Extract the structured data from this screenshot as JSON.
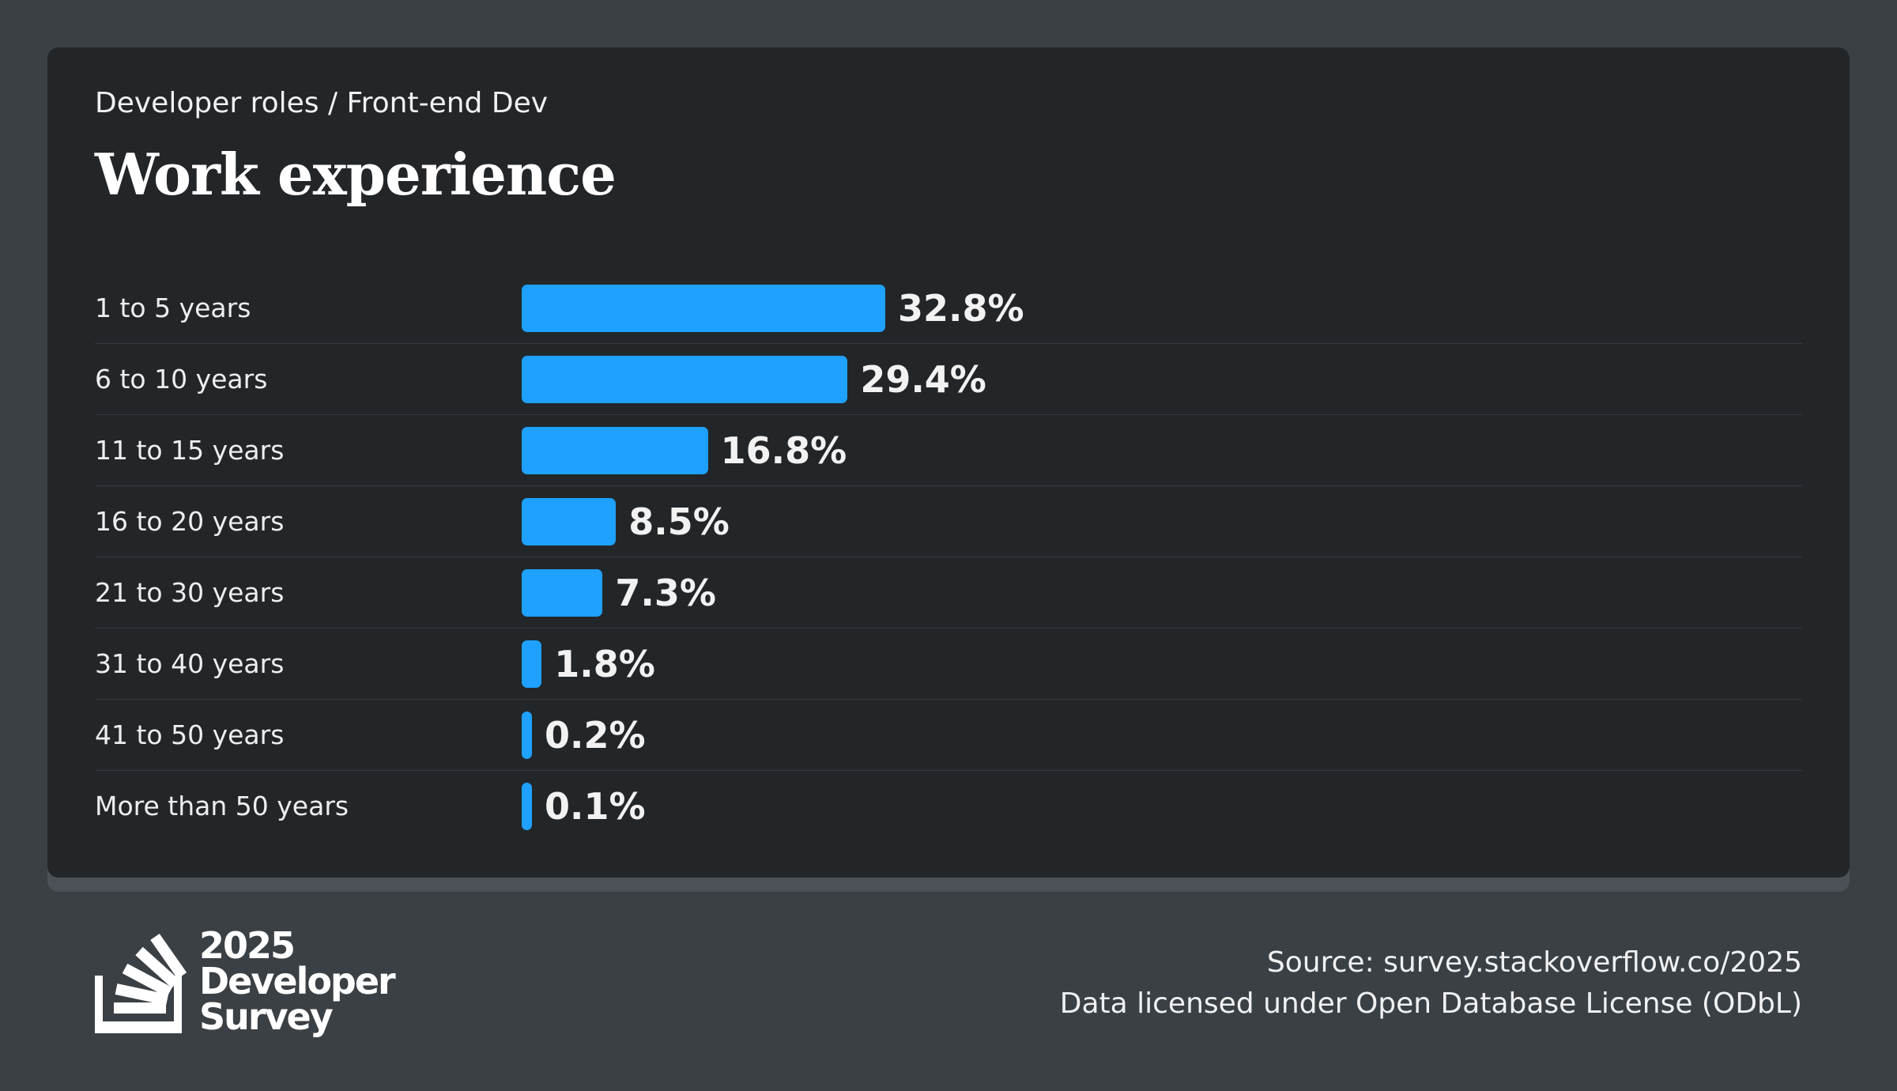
{
  "header": {
    "breadcrumb": "Developer roles / Front-end Dev",
    "title": "Work experience"
  },
  "chart_data": {
    "type": "bar",
    "orientation": "horizontal",
    "title": "Work experience",
    "categories": [
      "1 to 5 years",
      "6 to 10 years",
      "11 to 15 years",
      "16 to 20 years",
      "21 to 30 years",
      "31 to 40 years",
      "41 to 50 years",
      "More than 50 years"
    ],
    "values": [
      32.8,
      29.4,
      16.8,
      8.5,
      7.3,
      1.8,
      0.2,
      0.1
    ],
    "labels": [
      "32.8%",
      "29.4%",
      "16.8%",
      "8.5%",
      "7.3%",
      "1.8%",
      "0.2%",
      "0.1%"
    ],
    "unit": "%",
    "bar_color": "#1ea1ff",
    "grid": false
  },
  "footer": {
    "logo": {
      "line1": "2025",
      "line2": "Developer",
      "line3": "Survey"
    },
    "source": "Source: survey.stackoverflow.co/2025",
    "license": "Data licensed under Open Database License (ODbL)"
  },
  "colors": {
    "page_background": "#3b4045",
    "card_background": "#232629",
    "accent": "#1ea1ff"
  }
}
